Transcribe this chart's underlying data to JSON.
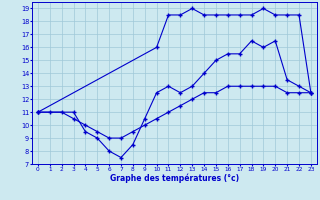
{
  "title": "Graphe des températures (°c)",
  "bg_color": "#cde9f0",
  "line_color": "#0000cc",
  "grid_color": "#a0c8d8",
  "xlim": [
    -0.5,
    23.5
  ],
  "ylim": [
    7,
    19.5
  ],
  "xticks": [
    0,
    1,
    2,
    3,
    4,
    5,
    6,
    7,
    8,
    9,
    10,
    11,
    12,
    13,
    14,
    15,
    16,
    17,
    18,
    19,
    20,
    21,
    22,
    23
  ],
  "yticks": [
    7,
    8,
    9,
    10,
    11,
    12,
    13,
    14,
    15,
    16,
    17,
    18,
    19
  ],
  "line1_bottom": {
    "x": [
      0,
      1,
      2,
      3,
      4,
      5,
      6,
      7,
      8,
      9,
      10,
      11,
      12,
      13,
      14,
      15,
      16,
      17,
      18,
      19,
      20,
      21,
      22,
      23
    ],
    "y": [
      11,
      11,
      11,
      10.5,
      10,
      9.5,
      9,
      9,
      9.5,
      10,
      10.5,
      11,
      11.5,
      12,
      12.5,
      12.5,
      13,
      13,
      13,
      13,
      13,
      12.5,
      12.5,
      12.5
    ]
  },
  "line2_mid": {
    "x": [
      0,
      3,
      4,
      5,
      6,
      7,
      8,
      9,
      10,
      11,
      12,
      13,
      14,
      15,
      16,
      17,
      18,
      19,
      20,
      21,
      22,
      23
    ],
    "y": [
      11,
      11,
      9.5,
      9,
      8,
      7.5,
      8.5,
      10.5,
      12.5,
      13,
      12.5,
      13,
      14,
      15,
      15.5,
      15.5,
      16.5,
      16,
      16.5,
      13.5,
      13,
      12.5
    ]
  },
  "line3_top": {
    "x": [
      0,
      10,
      11,
      12,
      13,
      14,
      15,
      16,
      17,
      18,
      19,
      20,
      21,
      22,
      23
    ],
    "y": [
      11,
      16,
      18.5,
      18.5,
      19,
      18.5,
      18.5,
      18.5,
      18.5,
      18.5,
      19,
      18.5,
      18.5,
      18.5,
      12.5
    ]
  }
}
